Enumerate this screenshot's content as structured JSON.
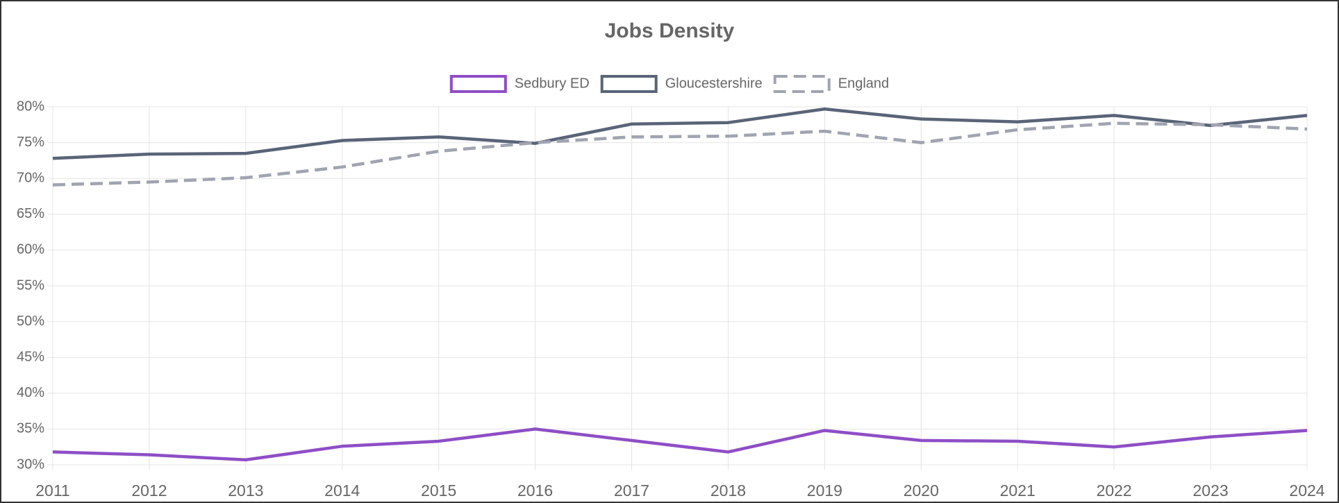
{
  "chart_data": {
    "type": "line",
    "title": "Jobs Density",
    "categories": [
      "2011",
      "2012",
      "2013",
      "2014",
      "2015",
      "2016",
      "2017",
      "2018",
      "2019",
      "2020",
      "2021",
      "2022",
      "2023",
      "2024"
    ],
    "series": [
      {
        "name": "Sedbury ED",
        "color": "#8e4ec6",
        "values": [
          31.8,
          31.4,
          30.7,
          32.6,
          33.3,
          35.0,
          33.4,
          31.8,
          34.8,
          33.4,
          33.3,
          32.5,
          33.9,
          34.8
        ]
      },
      {
        "name": "Gloucestershire",
        "color": "#5a6478",
        "values": [
          72.8,
          73.4,
          73.5,
          75.3,
          75.8,
          74.9,
          77.6,
          77.8,
          79.7,
          78.3,
          77.9,
          78.8,
          77.4,
          78.8
        ]
      },
      {
        "name": "England",
        "color": "#a0a4b0",
        "dashed": true,
        "values": [
          69.1,
          69.5,
          70.1,
          71.6,
          73.8,
          75.0,
          75.8,
          75.9,
          76.6,
          75.0,
          76.8,
          77.7,
          77.5,
          76.9
        ]
      }
    ],
    "ylim": [
      30,
      80
    ],
    "yticks": [
      {
        "value": 30,
        "label": "30%"
      },
      {
        "value": 35,
        "label": "35%"
      },
      {
        "value": 40,
        "label": "40%"
      },
      {
        "value": 45,
        "label": "45%"
      },
      {
        "value": 50,
        "label": "50%"
      },
      {
        "value": 55,
        "label": "55%"
      },
      {
        "value": 60,
        "label": "60%"
      },
      {
        "value": 65,
        "label": "65%"
      },
      {
        "value": 70,
        "label": "70%"
      },
      {
        "value": 75,
        "label": "75%"
      },
      {
        "value": 80,
        "label": "80%"
      }
    ],
    "grid": true,
    "legend": "top"
  }
}
